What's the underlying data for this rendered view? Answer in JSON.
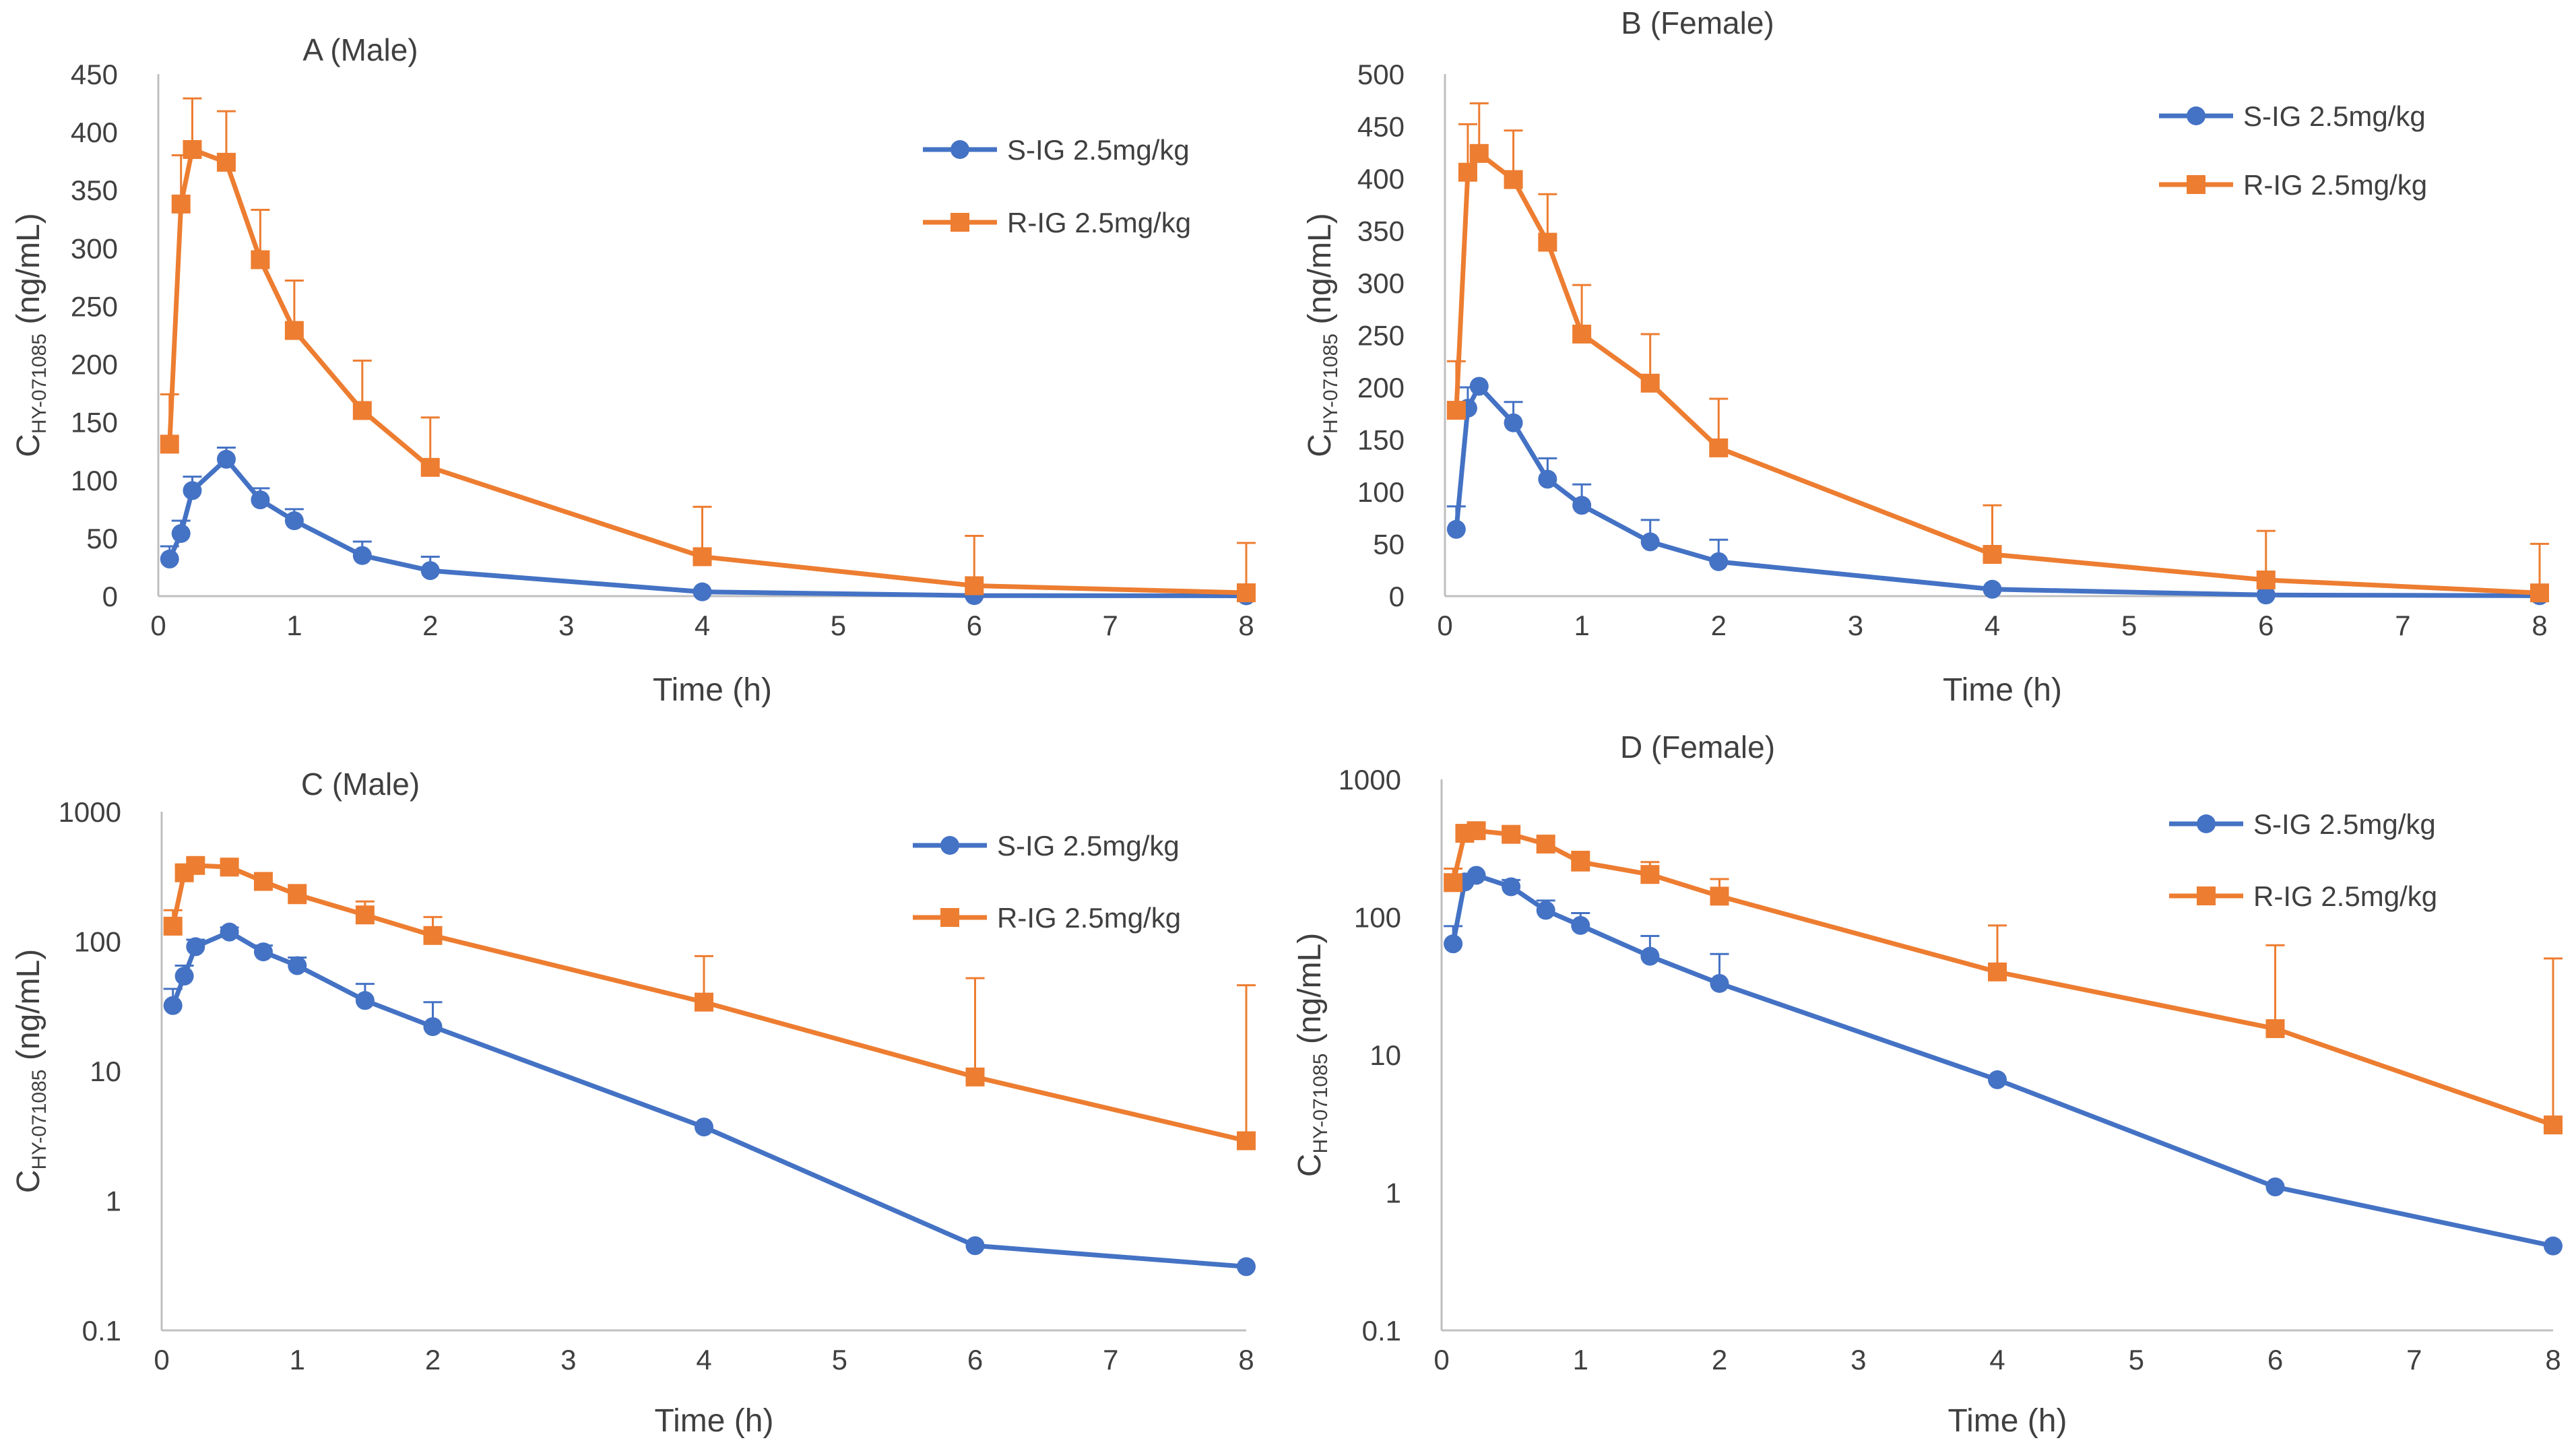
{
  "chart_data": [
    {
      "panel": "A",
      "type": "line",
      "scale": "linear",
      "title": "A (Male)",
      "xlabel": "Time (h)",
      "ylabel": {
        "main": "C",
        "sub": "HY-071085",
        "unit": " (ng/mL)"
      },
      "xlim": [
        0,
        8
      ],
      "xticks": [
        "0",
        "1",
        "2",
        "3",
        "4",
        "5",
        "6",
        "7",
        "8"
      ],
      "ylim": [
        0,
        450
      ],
      "yticks": [
        "0",
        "50",
        "100",
        "150",
        "200",
        "250",
        "300",
        "350",
        "400",
        "450"
      ],
      "legend_position": "top-right",
      "series": [
        {
          "name": "S-IG 2.5mg/kg",
          "color": "#4472C4",
          "marker": "circle",
          "x": [
            0.083,
            0.167,
            0.25,
            0.5,
            0.75,
            1,
            1.5,
            2,
            4,
            6,
            8
          ],
          "values": [
            32,
            54,
            91,
            118,
            83,
            65,
            35,
            22,
            3.7,
            0.45,
            0.31
          ],
          "errors": [
            11,
            11,
            12,
            10,
            10,
            10,
            12,
            12,
            0,
            0,
            0
          ]
        },
        {
          "name": "R-IG 2.5mg/kg",
          "color": "#ED7D31",
          "marker": "square",
          "x": [
            0.083,
            0.167,
            0.25,
            0.5,
            0.75,
            1,
            1.5,
            2,
            4,
            6,
            8
          ],
          "values": [
            131,
            338,
            385,
            374,
            290,
            229,
            160,
            111,
            34,
            9,
            2.9
          ],
          "errors": [
            43,
            42,
            44,
            44,
            43,
            43,
            43,
            43,
            43,
            43,
            43
          ]
        }
      ]
    },
    {
      "panel": "B",
      "type": "line",
      "scale": "linear",
      "title": "B (Female)",
      "xlabel": "Time (h)",
      "ylabel": {
        "main": "C",
        "sub": "HY-071085",
        "unit": " (ng/mL)"
      },
      "xlim": [
        0,
        8
      ],
      "xticks": [
        "0",
        "1",
        "2",
        "3",
        "4",
        "5",
        "6",
        "7",
        "8"
      ],
      "ylim": [
        0,
        500
      ],
      "yticks": [
        "0",
        "50",
        "100",
        "150",
        "200",
        "250",
        "300",
        "350",
        "400",
        "450",
        "500"
      ],
      "legend_position": "top-right",
      "series": [
        {
          "name": "S-IG 2.5mg/kg",
          "color": "#4472C4",
          "marker": "circle",
          "x": [
            0.083,
            0.167,
            0.25,
            0.5,
            0.75,
            1,
            1.5,
            2,
            4,
            6,
            8
          ],
          "values": [
            64,
            180,
            201,
            166,
            112,
            87,
            52,
            33,
            6.6,
            1.1,
            0.41
          ],
          "errors": [
            22,
            20,
            0,
            20,
            20,
            20,
            21,
            21,
            0,
            0,
            0
          ]
        },
        {
          "name": "R-IG 2.5mg/kg",
          "color": "#ED7D31",
          "marker": "square",
          "x": [
            0.083,
            0.167,
            0.25,
            0.5,
            0.75,
            1,
            1.5,
            2,
            4,
            6,
            8
          ],
          "values": [
            178,
            406,
            424,
            399,
            339,
            251,
            204,
            142,
            40,
            15.5,
            3.1
          ],
          "errors": [
            47,
            46,
            48,
            47,
            46,
            47,
            47,
            47,
            47,
            47,
            47
          ]
        }
      ]
    },
    {
      "panel": "C",
      "type": "line",
      "scale": "log",
      "title": "C (Male)",
      "xlabel": "Time (h)",
      "ylabel": {
        "main": "C",
        "sub": "HY-071085",
        "unit": " (ng/mL)"
      },
      "xlim": [
        0,
        8
      ],
      "xticks": [
        "0",
        "1",
        "2",
        "3",
        "4",
        "5",
        "6",
        "7",
        "8"
      ],
      "ylim": [
        0.1,
        1000
      ],
      "yticks": [
        "0.1",
        "1",
        "10",
        "100",
        "1000"
      ],
      "legend_position": "top-right",
      "series": [
        {
          "name": "S-IG 2.5mg/kg",
          "color": "#4472C4",
          "marker": "circle",
          "x": [
            0.083,
            0.167,
            0.25,
            0.5,
            0.75,
            1,
            1.5,
            2,
            4,
            6,
            8
          ],
          "values": [
            32,
            54,
            91,
            118,
            83,
            65,
            35,
            22,
            3.7,
            0.45,
            0.31
          ],
          "errors": [
            11,
            11,
            12,
            10,
            10,
            10,
            12,
            12,
            0,
            0,
            0
          ]
        },
        {
          "name": "R-IG 2.5mg/kg",
          "color": "#ED7D31",
          "marker": "square",
          "x": [
            0.083,
            0.167,
            0.25,
            0.5,
            0.75,
            1,
            1.5,
            2,
            4,
            6,
            8
          ],
          "values": [
            131,
            338,
            385,
            374,
            290,
            229,
            160,
            111,
            34,
            9,
            2.9
          ],
          "errors": [
            43,
            42,
            44,
            44,
            43,
            43,
            43,
            43,
            43,
            43,
            43
          ]
        }
      ]
    },
    {
      "panel": "D",
      "type": "line",
      "scale": "log",
      "title": "D (Female)",
      "xlabel": "Time (h)",
      "ylabel": {
        "main": "C",
        "sub": "HY-071085",
        "unit": " (ng/mL)"
      },
      "xlim": [
        0,
        8
      ],
      "xticks": [
        "0",
        "1",
        "2",
        "3",
        "4",
        "5",
        "6",
        "7",
        "8"
      ],
      "ylim": [
        0.1,
        1000
      ],
      "yticks": [
        "0.1",
        "1",
        "10",
        "100",
        "1000"
      ],
      "legend_position": "top-right",
      "series": [
        {
          "name": "S-IG 2.5mg/kg",
          "color": "#4472C4",
          "marker": "circle",
          "x": [
            0.083,
            0.167,
            0.25,
            0.5,
            0.75,
            1,
            1.5,
            2,
            4,
            6,
            8
          ],
          "values": [
            64,
            180,
            201,
            166,
            112,
            87,
            52,
            33,
            6.6,
            1.1,
            0.41
          ],
          "errors": [
            22,
            20,
            0,
            20,
            20,
            20,
            21,
            21,
            0,
            0,
            0
          ]
        },
        {
          "name": "R-IG 2.5mg/kg",
          "color": "#ED7D31",
          "marker": "square",
          "x": [
            0.083,
            0.167,
            0.25,
            0.5,
            0.75,
            1,
            1.5,
            2,
            4,
            6,
            8
          ],
          "values": [
            178,
            406,
            424,
            399,
            339,
            251,
            204,
            142,
            40,
            15.5,
            3.1
          ],
          "errors": [
            47,
            46,
            48,
            47,
            46,
            47,
            47,
            47,
            47,
            47,
            47
          ]
        }
      ]
    }
  ]
}
